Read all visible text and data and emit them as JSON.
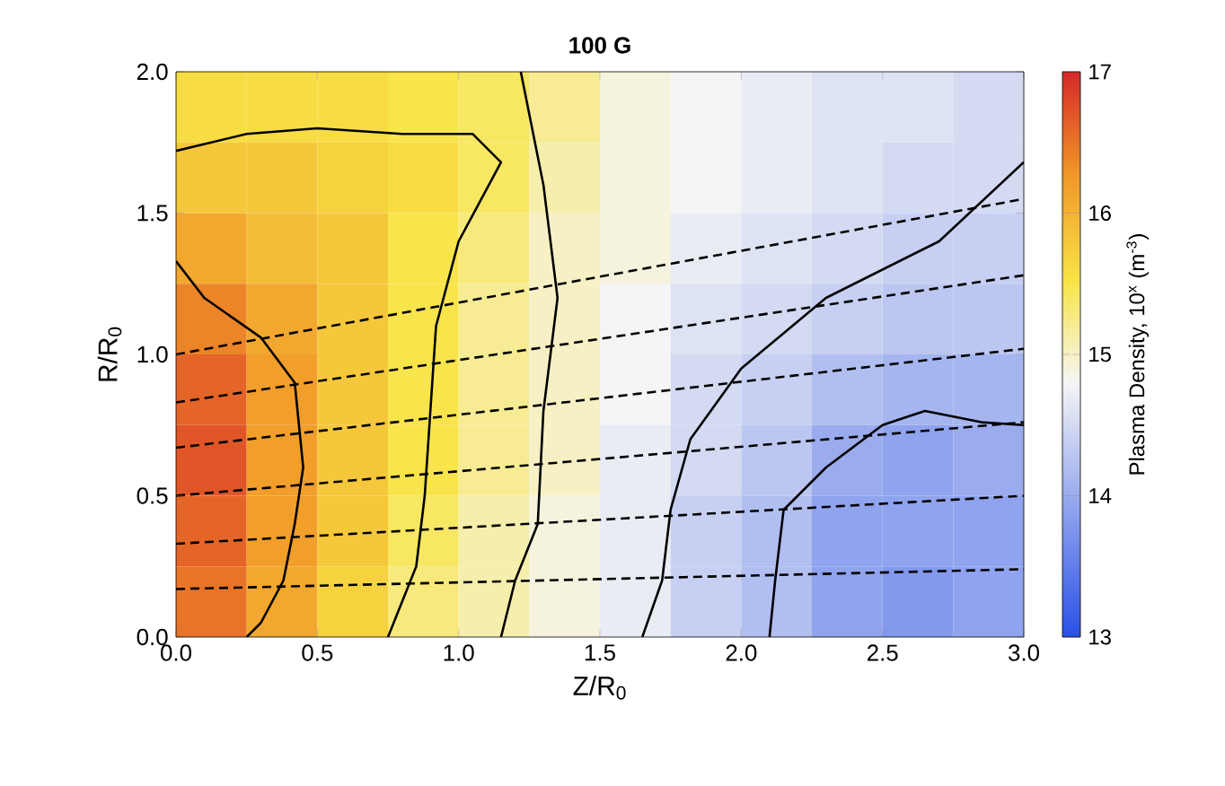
{
  "chart_data": {
    "type": "heatmap",
    "title": "100 G",
    "xlabel": "Z/R$_{0}$",
    "ylabel": "R/R$_{0}$",
    "clabel": "Plasma Density, 10$^{x}$ (m$^{-3}$)",
    "x": [
      0.125,
      0.375,
      0.625,
      0.875,
      1.125,
      1.375,
      1.625,
      1.875,
      2.125,
      2.375,
      2.625,
      2.875
    ],
    "cells": [
      [
        15.6,
        15.6,
        15.6,
        15.5,
        15.4,
        15.2,
        14.9,
        14.8,
        14.7,
        14.6,
        14.6,
        14.5
      ],
      [
        15.8,
        15.8,
        15.7,
        15.6,
        15.4,
        15.1,
        14.9,
        14.8,
        14.7,
        14.6,
        14.5,
        14.5
      ],
      [
        16.1,
        15.9,
        15.8,
        15.5,
        15.3,
        15.0,
        14.9,
        14.7,
        14.6,
        14.5,
        14.4,
        14.4
      ],
      [
        16.4,
        16.1,
        15.8,
        15.5,
        15.2,
        15.0,
        14.8,
        14.6,
        14.5,
        14.4,
        14.3,
        14.3
      ],
      [
        16.6,
        16.2,
        15.8,
        15.5,
        15.2,
        15.0,
        14.8,
        14.5,
        14.4,
        14.2,
        14.1,
        14.1
      ],
      [
        16.7,
        16.2,
        15.8,
        15.5,
        15.2,
        15.0,
        14.7,
        14.5,
        14.3,
        14.0,
        13.9,
        14.0
      ],
      [
        16.6,
        16.2,
        15.8,
        15.4,
        15.1,
        14.9,
        14.7,
        14.4,
        14.2,
        13.9,
        13.9,
        13.9
      ],
      [
        16.5,
        16.1,
        15.7,
        15.3,
        15.1,
        14.9,
        14.7,
        14.4,
        14.2,
        13.9,
        13.8,
        13.9
      ]
    ],
    "clim": [
      13,
      17
    ],
    "cticks": [
      13,
      14,
      15,
      16,
      17
    ],
    "xlim": [
      0,
      3
    ],
    "ylim": [
      0,
      2
    ],
    "xticks": [
      {
        "value": 0,
        "label": "0.0"
      },
      {
        "value": 0.5,
        "label": "0.5"
      },
      {
        "value": 1,
        "label": "1.0"
      },
      {
        "value": 1.5,
        "label": "1.5"
      },
      {
        "value": 2,
        "label": "2.0"
      },
      {
        "value": 2.5,
        "label": "2.5"
      },
      {
        "value": 3,
        "label": "3.0"
      }
    ],
    "yticks": [
      {
        "value": 0,
        "label": "0.0"
      },
      {
        "value": 0.5,
        "label": "0.5"
      },
      {
        "value": 1,
        "label": "1.0"
      },
      {
        "value": 1.5,
        "label": "1.5"
      },
      {
        "value": 2,
        "label": "2.0"
      }
    ],
    "series": [
      {
        "type": "line",
        "color": "#000000",
        "line_style": "solid",
        "x": [
          0,
          0.1,
          0.3,
          0.42,
          0.45,
          0.42,
          0.38,
          0.3,
          0.25
        ],
        "values": [
          1.33,
          1.2,
          1.06,
          0.9,
          0.6,
          0.4,
          0.2,
          0.05,
          0
        ]
      },
      {
        "type": "line",
        "color": "#000000",
        "line_style": "solid",
        "x": [
          0,
          0.25,
          0.5,
          0.8,
          1.05,
          1.15,
          1.0,
          0.92,
          0.9,
          0.88,
          0.85,
          0.75
        ],
        "values": [
          1.72,
          1.78,
          1.8,
          1.78,
          1.78,
          1.68,
          1.4,
          1.1,
          0.8,
          0.5,
          0.25,
          0
        ]
      },
      {
        "type": "line",
        "color": "#000000",
        "line_style": "solid",
        "x": [
          1.22,
          1.3,
          1.35,
          1.3,
          1.28,
          1.2,
          1.15
        ],
        "values": [
          2.0,
          1.6,
          1.2,
          0.8,
          0.4,
          0.2,
          0
        ]
      },
      {
        "type": "line",
        "color": "#000000",
        "line_style": "solid",
        "x": [
          3.0,
          2.7,
          2.3,
          2.0,
          1.82,
          1.75,
          1.72,
          1.65
        ],
        "values": [
          1.68,
          1.4,
          1.2,
          0.95,
          0.7,
          0.45,
          0.2,
          0
        ]
      },
      {
        "type": "line",
        "color": "#000000",
        "line_style": "solid",
        "x": [
          3.0,
          2.85,
          2.65,
          2.5,
          2.3,
          2.15,
          2.12,
          2.1
        ],
        "values": [
          0.75,
          0.76,
          0.8,
          0.75,
          0.6,
          0.45,
          0.2,
          0
        ]
      },
      {
        "type": "line",
        "color": "#000000",
        "line_style": "dashed",
        "x": [
          0,
          3
        ],
        "values": [
          0.17,
          0.24
        ]
      },
      {
        "type": "line",
        "color": "#000000",
        "line_style": "dashed",
        "x": [
          0,
          3
        ],
        "values": [
          0.33,
          0.5
        ]
      },
      {
        "type": "line",
        "color": "#000000",
        "line_style": "dashed",
        "x": [
          0,
          3
        ],
        "values": [
          0.5,
          0.76
        ]
      },
      {
        "type": "line",
        "color": "#000000",
        "line_style": "dashed",
        "x": [
          0,
          3
        ],
        "values": [
          0.67,
          1.02
        ]
      },
      {
        "type": "line",
        "color": "#000000",
        "line_style": "dashed",
        "x": [
          0,
          3
        ],
        "values": [
          0.83,
          1.28
        ]
      },
      {
        "type": "line",
        "color": "#000000",
        "line_style": "dashed",
        "x": [
          0,
          3
        ],
        "values": [
          1.0,
          1.55
        ]
      }
    ]
  }
}
